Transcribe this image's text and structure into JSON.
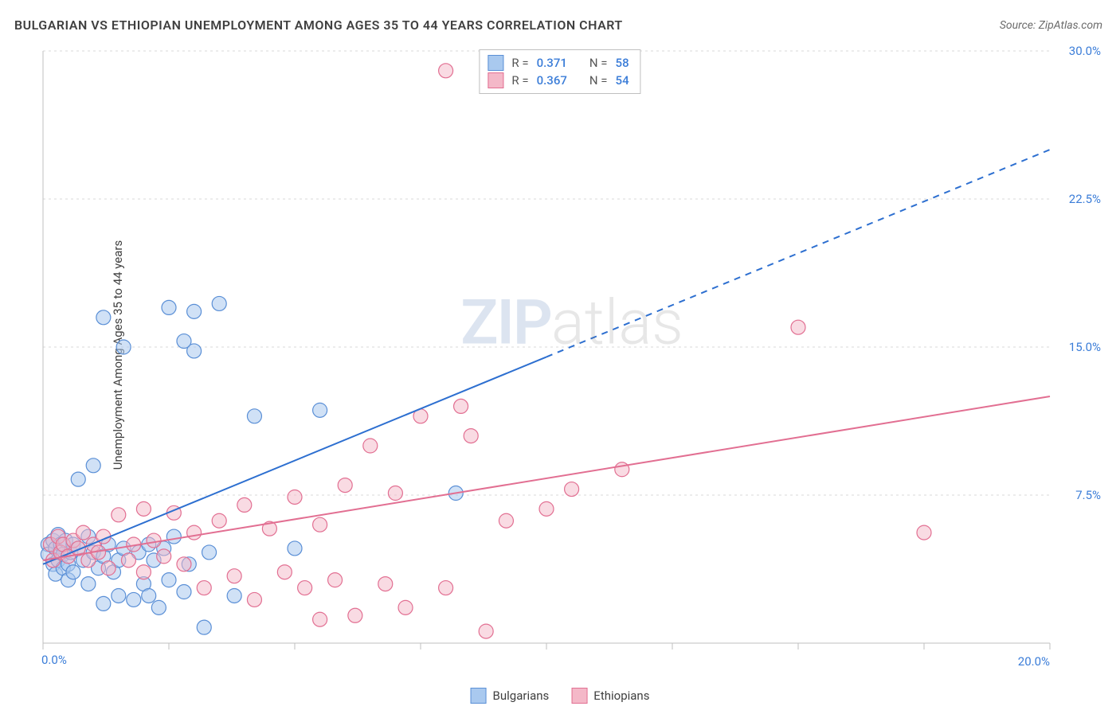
{
  "title": "BULGARIAN VS ETHIOPIAN UNEMPLOYMENT AMONG AGES 35 TO 44 YEARS CORRELATION CHART",
  "source": "Source: ZipAtlas.com",
  "ylabel": "Unemployment Among Ages 35 to 44 years",
  "watermark_a": "ZIP",
  "watermark_b": "atlas",
  "chart": {
    "type": "scatter",
    "background_color": "#ffffff",
    "grid_color": "#d9d9d9",
    "grid_dash": "3,4",
    "axis_color": "#bfbfbf",
    "tick_color": "#bfbfbf",
    "tick_label_color": "#3b7dd8",
    "xlim": [
      0,
      20
    ],
    "ylim": [
      0,
      30
    ],
    "xtick_step": 2.5,
    "ytick_step": 7.5,
    "xtick_major_label": "20.0%",
    "xtick_zero_label": "0.0%",
    "ytick_labels": [
      "7.5%",
      "15.0%",
      "22.5%",
      "30.0%"
    ],
    "marker_radius": 9,
    "marker_stroke_width": 1.2,
    "series": [
      {
        "name": "Bulgarians",
        "color_fill": "#a9c9ef",
        "color_stroke": "#5a8fd6",
        "fill_opacity": 0.55,
        "r": "0.371",
        "n": "58",
        "trend": {
          "x1": 0,
          "y1": 4.0,
          "x2": 20,
          "y2": 25.0,
          "solid_until_x": 10.0,
          "color": "#2d6fd0",
          "width": 2
        },
        "points": [
          [
            0.1,
            5.0
          ],
          [
            0.1,
            4.5
          ],
          [
            0.2,
            5.2
          ],
          [
            0.2,
            4.0
          ],
          [
            0.25,
            4.8
          ],
          [
            0.25,
            3.5
          ],
          [
            0.3,
            5.5
          ],
          [
            0.3,
            4.2
          ],
          [
            0.35,
            5.0
          ],
          [
            0.4,
            4.5
          ],
          [
            0.4,
            3.8
          ],
          [
            0.45,
            5.2
          ],
          [
            0.5,
            4.0
          ],
          [
            0.5,
            3.2
          ],
          [
            0.55,
            4.6
          ],
          [
            0.6,
            5.0
          ],
          [
            0.6,
            3.6
          ],
          [
            0.7,
            4.8
          ],
          [
            0.7,
            8.3
          ],
          [
            0.8,
            4.2
          ],
          [
            0.9,
            5.4
          ],
          [
            0.9,
            3.0
          ],
          [
            1.0,
            4.6
          ],
          [
            1.0,
            9.0
          ],
          [
            1.1,
            3.8
          ],
          [
            1.2,
            4.4
          ],
          [
            1.2,
            2.0
          ],
          [
            1.3,
            5.0
          ],
          [
            1.4,
            3.6
          ],
          [
            1.5,
            4.2
          ],
          [
            1.5,
            2.4
          ],
          [
            1.6,
            4.8
          ],
          [
            1.8,
            2.2
          ],
          [
            1.9,
            4.6
          ],
          [
            2.0,
            3.0
          ],
          [
            2.1,
            5.0
          ],
          [
            2.1,
            2.4
          ],
          [
            2.2,
            4.2
          ],
          [
            2.3,
            1.8
          ],
          [
            2.4,
            4.8
          ],
          [
            2.5,
            3.2
          ],
          [
            2.6,
            5.4
          ],
          [
            2.8,
            2.6
          ],
          [
            2.9,
            4.0
          ],
          [
            3.0,
            14.8
          ],
          [
            3.2,
            0.8
          ],
          [
            3.3,
            4.6
          ],
          [
            3.8,
            2.4
          ],
          [
            4.2,
            11.5
          ],
          [
            5.0,
            4.8
          ],
          [
            5.5,
            11.8
          ],
          [
            1.2,
            16.5
          ],
          [
            2.5,
            17.0
          ],
          [
            2.8,
            15.3
          ],
          [
            3.0,
            16.8
          ],
          [
            3.5,
            17.2
          ],
          [
            1.6,
            15.0
          ],
          [
            8.2,
            7.6
          ]
        ]
      },
      {
        "name": "Ethiopians",
        "color_fill": "#f4b8c8",
        "color_stroke": "#e26f92",
        "fill_opacity": 0.5,
        "r": "0.367",
        "n": "54",
        "trend": {
          "x1": 0,
          "y1": 4.2,
          "x2": 20,
          "y2": 12.5,
          "solid_until_x": 20,
          "color": "#e26f92",
          "width": 2
        },
        "points": [
          [
            0.15,
            5.0
          ],
          [
            0.2,
            4.2
          ],
          [
            0.3,
            5.4
          ],
          [
            0.35,
            4.6
          ],
          [
            0.4,
            5.0
          ],
          [
            0.5,
            4.4
          ],
          [
            0.6,
            5.2
          ],
          [
            0.7,
            4.8
          ],
          [
            0.8,
            5.6
          ],
          [
            0.9,
            4.2
          ],
          [
            1.0,
            5.0
          ],
          [
            1.1,
            4.6
          ],
          [
            1.2,
            5.4
          ],
          [
            1.3,
            3.8
          ],
          [
            1.5,
            6.5
          ],
          [
            1.7,
            4.2
          ],
          [
            1.8,
            5.0
          ],
          [
            2.0,
            6.8
          ],
          [
            2.0,
            3.6
          ],
          [
            2.2,
            5.2
          ],
          [
            2.4,
            4.4
          ],
          [
            2.6,
            6.6
          ],
          [
            2.8,
            4.0
          ],
          [
            3.0,
            5.6
          ],
          [
            3.2,
            2.8
          ],
          [
            3.5,
            6.2
          ],
          [
            3.8,
            3.4
          ],
          [
            4.0,
            7.0
          ],
          [
            4.2,
            2.2
          ],
          [
            4.5,
            5.8
          ],
          [
            4.8,
            3.6
          ],
          [
            5.0,
            7.4
          ],
          [
            5.2,
            2.8
          ],
          [
            5.5,
            6.0
          ],
          [
            5.8,
            3.2
          ],
          [
            6.0,
            8.0
          ],
          [
            6.2,
            1.4
          ],
          [
            6.5,
            10.0
          ],
          [
            6.8,
            3.0
          ],
          [
            7.0,
            7.6
          ],
          [
            7.5,
            11.5
          ],
          [
            8.0,
            2.8
          ],
          [
            8.5,
            10.5
          ],
          [
            8.8,
            0.6
          ],
          [
            9.2,
            6.2
          ],
          [
            10.0,
            6.8
          ],
          [
            10.5,
            7.8
          ],
          [
            11.5,
            8.8
          ],
          [
            8.0,
            29.0
          ],
          [
            8.3,
            12.0
          ],
          [
            15.0,
            16.0
          ],
          [
            17.5,
            5.6
          ],
          [
            5.5,
            1.2
          ],
          [
            7.2,
            1.8
          ]
        ]
      }
    ]
  },
  "stats_legend_labels": {
    "r": "R  =",
    "n": "N  ="
  },
  "series_legend": [
    "Bulgarians",
    "Ethiopians"
  ]
}
